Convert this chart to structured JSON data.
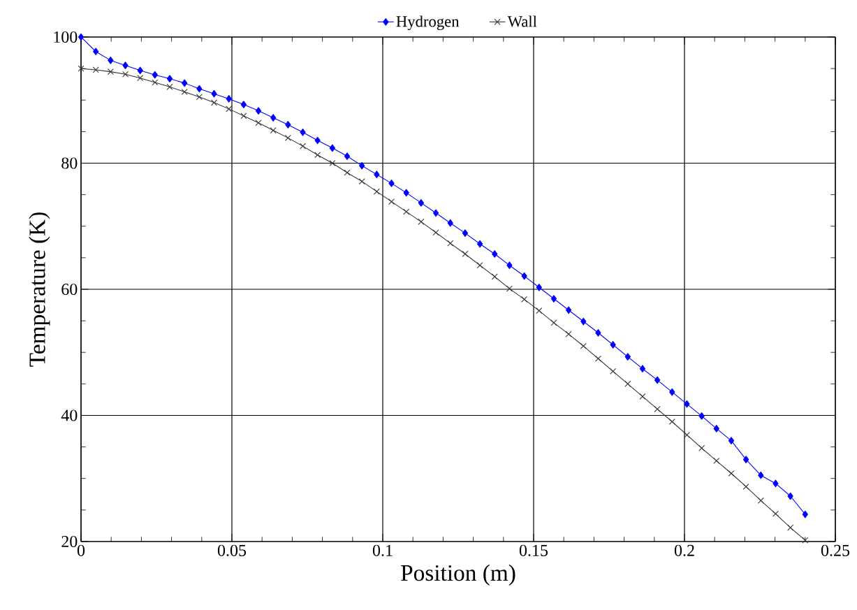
{
  "chart_data": {
    "type": "line",
    "xlabel": "Position (m)",
    "ylabel": "Temperature (K)",
    "x": [
      0,
      0.0049,
      0.0098,
      0.0147,
      0.0196,
      0.0245,
      0.0294,
      0.0343,
      0.0392,
      0.0441,
      0.049,
      0.0539,
      0.0588,
      0.0637,
      0.0686,
      0.0735,
      0.0784,
      0.0833,
      0.0882,
      0.0931,
      0.098,
      0.1029,
      0.1078,
      0.1127,
      0.1176,
      0.1224,
      0.1273,
      0.1322,
      0.1371,
      0.142,
      0.1469,
      0.1518,
      0.1567,
      0.1616,
      0.1665,
      0.1714,
      0.1763,
      0.1812,
      0.1861,
      0.191,
      0.1959,
      0.2008,
      0.2057,
      0.2106,
      0.2155,
      0.2204,
      0.2253,
      0.2302,
      0.2351,
      0.24
    ],
    "series": [
      {
        "name": "Hydrogen",
        "color": "#0000ff",
        "marker": "diamond",
        "values": [
          100,
          97.7,
          96.3,
          95.5,
          94.7,
          94.0,
          93.4,
          92.7,
          91.8,
          91.0,
          90.2,
          89.3,
          88.3,
          87.2,
          86.1,
          84.9,
          83.6,
          82.4,
          81.1,
          79.6,
          78.2,
          76.8,
          75.3,
          73.7,
          72.1,
          70.5,
          68.9,
          67.2,
          65.6,
          63.8,
          62.1,
          60.3,
          58.5,
          56.7,
          54.9,
          53.1,
          51.2,
          49.3,
          47.4,
          45.6,
          43.7,
          41.8,
          39.9,
          37.9,
          36.0,
          33.0,
          30.5,
          29.2,
          27.2,
          24.3
        ]
      },
      {
        "name": "Wall",
        "color": "#333333",
        "marker": "cross",
        "values": [
          95.0,
          94.8,
          94.5,
          94.1,
          93.5,
          92.8,
          92.1,
          91.3,
          90.5,
          89.6,
          88.6,
          87.5,
          86.4,
          85.2,
          84.0,
          82.7,
          81.3,
          80.0,
          78.5,
          77.1,
          75.5,
          73.9,
          72.3,
          70.7,
          69.0,
          67.3,
          65.6,
          63.8,
          62.0,
          60.1,
          58.4,
          56.6,
          54.7,
          52.9,
          51.0,
          49.0,
          47.0,
          45.0,
          43.0,
          41.0,
          39.0,
          36.9,
          34.8,
          32.8,
          30.8,
          28.7,
          26.5,
          24.4,
          22.2,
          20.2
        ]
      }
    ],
    "xlim": [
      0,
      0.25
    ],
    "ylim": [
      20,
      100
    ],
    "xticks": [
      0,
      0.05,
      0.1,
      0.15,
      0.2,
      0.25
    ],
    "yticks": [
      20,
      40,
      60,
      80,
      100
    ],
    "grid": true,
    "legend": "top",
    "line_style": "solid"
  }
}
